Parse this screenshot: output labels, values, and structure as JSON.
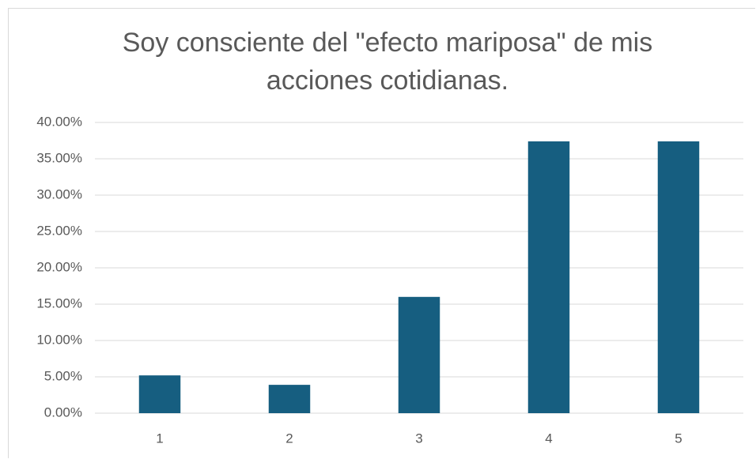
{
  "chart_data": {
    "type": "bar",
    "title": "Soy consciente del \"efecto mariposa\" de mis acciones cotidianas.",
    "categories": [
      "1",
      "2",
      "3",
      "4",
      "5"
    ],
    "values": [
      5.2,
      3.9,
      16.0,
      37.4,
      37.4
    ],
    "color": "#165e80",
    "ylim": [
      0,
      40
    ],
    "yticks": [
      {
        "value": 0,
        "label": "0.00%"
      },
      {
        "value": 5,
        "label": "5.00%"
      },
      {
        "value": 10,
        "label": "10.00%"
      },
      {
        "value": 15,
        "label": "15.00%"
      },
      {
        "value": 20,
        "label": "20.00%"
      },
      {
        "value": 25,
        "label": "25.00%"
      },
      {
        "value": 30,
        "label": "30.00%"
      },
      {
        "value": 35,
        "label": "35.00%"
      },
      {
        "value": 40,
        "label": "40.00%"
      }
    ],
    "grid": true
  }
}
